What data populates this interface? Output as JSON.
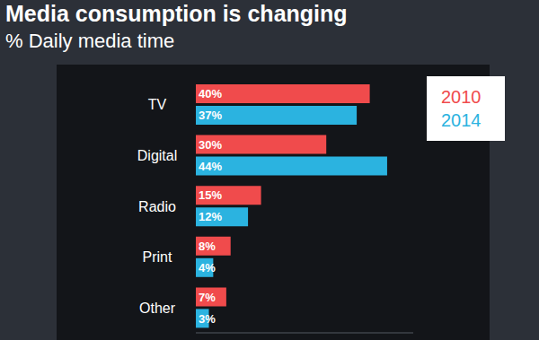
{
  "chart_data": {
    "type": "bar",
    "orientation": "horizontal",
    "title": "Media consumption is changing",
    "subtitle": "% Daily media time",
    "categories": [
      "TV",
      "Digital",
      "Radio",
      "Print",
      "Other"
    ],
    "series": [
      {
        "name": "2010",
        "color": "#f04b4c",
        "values": [
          40,
          30,
          15,
          8,
          7
        ],
        "value_labels": [
          "40%",
          "30%",
          "15%",
          "8%",
          "7%"
        ]
      },
      {
        "name": "2014",
        "color": "#2bb3e0",
        "values": [
          37,
          44,
          12,
          4,
          3
        ],
        "value_labels": [
          "37%",
          "44%",
          "12%",
          "4%",
          "3%"
        ]
      }
    ],
    "xlim": [
      0,
      50
    ],
    "data_labels": true,
    "tick_labels": "y",
    "legend": "top-right",
    "grid": false
  }
}
